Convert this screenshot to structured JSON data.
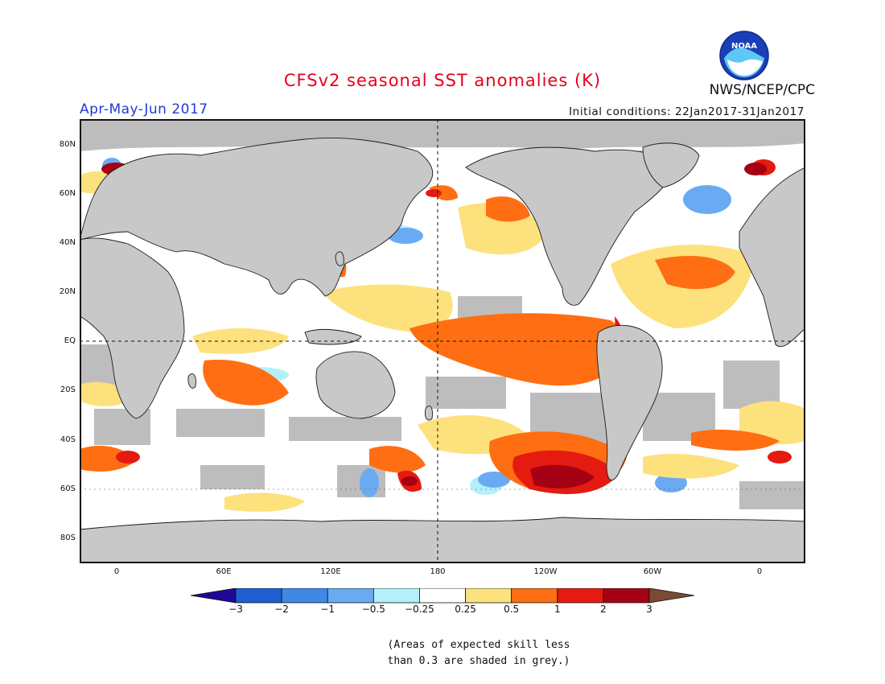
{
  "header": {
    "title": "CFSv2 seasonal SST anomalies (K)",
    "period": "Apr-May-Jun 2017",
    "initial_conditions": "Initial conditions: 22Jan2017-31Jan2017",
    "agency": "NWS/NCEP/CPC",
    "logo_text": "NOAA"
  },
  "map": {
    "lat_ticks": [
      "80N",
      "60N",
      "40N",
      "20N",
      "EQ",
      "20S",
      "40S",
      "60S",
      "80S"
    ],
    "lon_ticks": [
      "0",
      "60E",
      "120E",
      "180",
      "120W",
      "60W",
      "0"
    ],
    "colors": {
      "land": "#c8c8c8",
      "low_skill": "#bdbdbd",
      "ocean_neutral": "#ffffff"
    }
  },
  "legend": {
    "tick_labels": [
      "-3",
      "-2",
      "-1",
      "-0.5",
      "-0.25",
      "0.25",
      "0.5",
      "1",
      "2",
      "3"
    ],
    "colors": [
      "#1e0896",
      "#1f5fd2",
      "#3e89e6",
      "#6aaaf2",
      "#b4f0fa",
      "#ffffff",
      "#fde17d",
      "#ff6e12",
      "#e51a10",
      "#a50013",
      "#7a4a33"
    ]
  },
  "footnote": {
    "line1": "(Areas of expected skill less",
    "line2": "than 0.3 are shaded in grey.)"
  }
}
